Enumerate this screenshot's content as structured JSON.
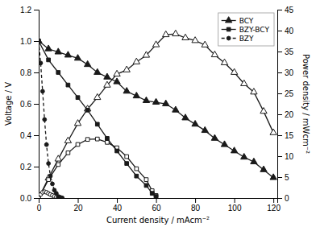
{
  "chart_data": {
    "type": "line",
    "xlabel": "Current density / mAcm⁻²",
    "ylabel": "Voltage / V",
    "y2label": "Power density / mWcm⁻²",
    "xlim": [
      0,
      122
    ],
    "ylim": [
      0,
      1.2
    ],
    "y2lim": [
      0,
      45
    ],
    "xticks": [
      0,
      20,
      40,
      60,
      80,
      100,
      120
    ],
    "yticks": [
      {
        "value": 0.0,
        "label": "0.0"
      },
      0.2,
      0.4,
      0.6,
      0.8,
      {
        "value": 1.0,
        "label": "1.0"
      },
      1.2
    ],
    "y2ticks": [
      0,
      5,
      10,
      15,
      20,
      25,
      30,
      35,
      40,
      45
    ],
    "legend": "upper right",
    "series": [
      {
        "name": "BCY",
        "axis": "y",
        "color": "#1a1a1a",
        "marker": "triangle",
        "line_style": "solid",
        "x": [
          0,
          5,
          10,
          15,
          20,
          25,
          30,
          35,
          40,
          45,
          50,
          55,
          60,
          65,
          70,
          75,
          80,
          85,
          90,
          95,
          100,
          105,
          110,
          115,
          120
        ],
        "values": [
          1.0,
          0.95,
          0.93,
          0.91,
          0.89,
          0.85,
          0.8,
          0.77,
          0.74,
          0.68,
          0.65,
          0.62,
          0.61,
          0.6,
          0.56,
          0.51,
          0.47,
          0.43,
          0.38,
          0.34,
          0.3,
          0.26,
          0.23,
          0.18,
          0.13
        ]
      },
      {
        "name": "BZY-BCY",
        "axis": "y",
        "color": "#1a1a1a",
        "marker": "square",
        "line_style": "solid",
        "x": [
          0,
          5,
          10,
          15,
          20,
          25,
          30,
          35,
          40,
          45,
          50,
          55,
          58,
          60
        ],
        "values": [
          1.0,
          0.88,
          0.8,
          0.72,
          0.64,
          0.56,
          0.47,
          0.38,
          0.3,
          0.22,
          0.14,
          0.08,
          0.03,
          0.01
        ]
      },
      {
        "name": "BZY",
        "axis": "y",
        "color": "#1a1a1a",
        "marker": "circle",
        "line_style": "dashed",
        "x": [
          0,
          1,
          2,
          3,
          4,
          5,
          6,
          7,
          8,
          9,
          10,
          11,
          12
        ],
        "values": [
          1.0,
          0.86,
          0.68,
          0.5,
          0.34,
          0.22,
          0.14,
          0.09,
          0.05,
          0.03,
          0.01,
          0.005,
          0.0
        ]
      },
      {
        "name": "BCY",
        "axis": "y2",
        "color": "#1a1a1a",
        "marker": "triangle-open",
        "line_style": "solid",
        "x": [
          0,
          5,
          10,
          15,
          20,
          25,
          30,
          35,
          40,
          45,
          50,
          55,
          60,
          65,
          70,
          75,
          80,
          85,
          90,
          95,
          100,
          105,
          110,
          115,
          120
        ],
        "values": [
          0,
          4.75,
          9.3,
          13.65,
          17.8,
          21.25,
          24.0,
          26.95,
          29.6,
          30.6,
          32.5,
          34.1,
          36.6,
          39.0,
          39.2,
          38.25,
          37.6,
          36.55,
          34.2,
          32.3,
          30.0,
          27.3,
          25.3,
          20.7,
          15.6
        ]
      },
      {
        "name": "BZY-BCY",
        "axis": "y2",
        "color": "#1a1a1a",
        "marker": "square-open",
        "line_style": "solid",
        "x": [
          0,
          5,
          10,
          15,
          20,
          25,
          30,
          35,
          40,
          45,
          50,
          55,
          58,
          60
        ],
        "values": [
          0,
          4.4,
          8.0,
          10.8,
          12.8,
          14.0,
          14.1,
          13.3,
          12.0,
          9.9,
          7.0,
          4.4,
          1.74,
          0.6
        ]
      },
      {
        "name": "BZY",
        "axis": "y2",
        "color": "#1a1a1a",
        "marker": "circle-open",
        "line_style": "dashed",
        "x": [
          0,
          1,
          2,
          3,
          4,
          5,
          6,
          7,
          8,
          9,
          10,
          11,
          12
        ],
        "values": [
          0,
          0.86,
          1.36,
          1.5,
          1.36,
          1.1,
          0.84,
          0.63,
          0.4,
          0.27,
          0.1,
          0.055,
          0.0
        ]
      }
    ]
  }
}
